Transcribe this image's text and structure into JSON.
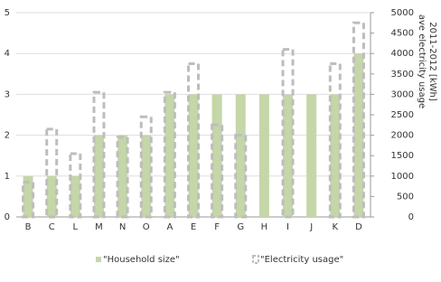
{
  "chart_data": {
    "type": "bar",
    "categories": [
      "B",
      "C",
      "L",
      "M",
      "N",
      "O",
      "A",
      "E",
      "F",
      "G",
      "H",
      "I",
      "J",
      "K",
      "D"
    ],
    "series": [
      {
        "name": "\"Household size\"",
        "color": "#c5d6a8",
        "values": [
          1,
          1,
          1,
          2,
          2,
          2,
          3,
          3,
          3,
          3,
          3,
          3,
          3,
          3,
          4
        ]
      },
      {
        "name": "\"Electricity usage\"",
        "color": "#bdbdbd",
        "axis": "y2",
        "style": "dashed",
        "values": [
          850,
          2150,
          1550,
          3050,
          1950,
          2450,
          3050,
          3750,
          2250,
          2000,
          null,
          4100,
          null,
          3750,
          4750
        ]
      }
    ],
    "ylim": [
      0,
      5
    ],
    "yticks": [
      0,
      1,
      2,
      3,
      4,
      5
    ],
    "y2lim": [
      0,
      5000
    ],
    "y2ticks": [
      0,
      500,
      1000,
      1500,
      2000,
      2500,
      3000,
      3500,
      4000,
      4500,
      5000
    ],
    "y2label": [
      "ave electricity usage",
      "2011-2012 [kWh]"
    ],
    "grid": true,
    "legend": "bottom"
  }
}
